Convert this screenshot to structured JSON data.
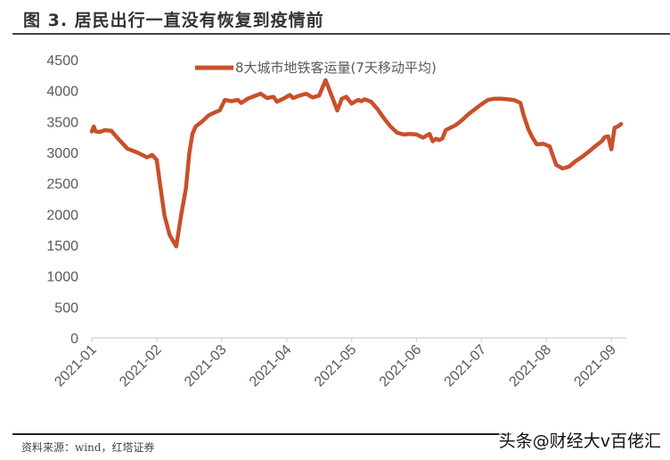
{
  "header": {
    "title": "图 3. 居民出行一直没有恢复到疫情前"
  },
  "footer": {
    "source": "资料来源：wind，红塔证券",
    "watermark": "头条@财经大v百佬汇"
  },
  "colors": {
    "series": "#c8502a",
    "axis": "#d9d9d9",
    "tick_text": "#595959"
  },
  "chart_data": {
    "type": "line",
    "title": "图 3. 居民出行一直没有恢复到疫情前",
    "xlabel": "",
    "ylabel": "",
    "ylim": [
      0,
      4500
    ],
    "yticks": [
      0,
      500,
      1000,
      1500,
      2000,
      2500,
      3000,
      3500,
      4000,
      4500
    ],
    "xticks": [
      "2021-01",
      "2021-02",
      "2021-03",
      "2021-04",
      "2021-05",
      "2021-06",
      "2021-07",
      "2021-08",
      "2021-09"
    ],
    "grid": false,
    "legend_position": "top-center",
    "series": [
      {
        "name": "8大城市地铁客运量(7天移动平均)",
        "x": [
          0.0,
          0.03,
          0.06,
          0.12,
          0.2,
          0.3,
          0.4,
          0.55,
          0.7,
          0.85,
          0.93,
          1.0,
          1.05,
          1.12,
          1.2,
          1.3,
          1.38,
          1.45,
          1.5,
          1.55,
          1.6,
          1.7,
          1.8,
          1.9,
          1.97,
          2.05,
          2.15,
          2.25,
          2.3,
          2.4,
          2.5,
          2.6,
          2.7,
          2.8,
          2.85,
          2.95,
          3.05,
          3.1,
          3.2,
          3.3,
          3.4,
          3.5,
          3.6,
          3.7,
          3.78,
          3.85,
          3.92,
          4.0,
          4.05,
          4.1,
          4.15,
          4.2,
          4.3,
          4.4,
          4.5,
          4.6,
          4.7,
          4.8,
          4.9,
          5.0,
          5.1,
          5.2,
          5.25,
          5.3,
          5.35,
          5.4,
          5.45,
          5.5,
          5.6,
          5.7,
          5.8,
          5.9,
          6.0,
          6.1,
          6.2,
          6.3,
          6.4,
          6.5,
          6.6,
          6.65,
          6.72,
          6.78,
          6.85,
          6.95,
          7.05,
          7.15,
          7.25,
          7.35,
          7.45,
          7.55,
          7.65,
          7.75,
          7.85,
          7.9,
          7.95,
          8.0,
          8.05,
          8.1,
          8.15
        ],
        "values": [
          3340,
          3420,
          3340,
          3330,
          3360,
          3350,
          3230,
          3060,
          3000,
          2920,
          2960,
          2880,
          2500,
          1980,
          1660,
          1480,
          2010,
          2420,
          2980,
          3300,
          3420,
          3500,
          3600,
          3650,
          3680,
          3850,
          3830,
          3850,
          3800,
          3870,
          3910,
          3950,
          3880,
          3900,
          3820,
          3870,
          3930,
          3880,
          3920,
          3950,
          3890,
          3920,
          4170,
          3900,
          3680,
          3870,
          3900,
          3790,
          3820,
          3850,
          3830,
          3860,
          3820,
          3700,
          3550,
          3420,
          3320,
          3290,
          3300,
          3290,
          3240,
          3300,
          3180,
          3220,
          3200,
          3230,
          3360,
          3390,
          3440,
          3520,
          3620,
          3700,
          3780,
          3850,
          3870,
          3870,
          3860,
          3850,
          3800,
          3600,
          3380,
          3250,
          3130,
          3140,
          3100,
          2800,
          2740,
          2770,
          2860,
          2930,
          3010,
          3100,
          3180,
          3250,
          3260,
          3050,
          3400,
          3420,
          3460
        ]
      }
    ]
  }
}
